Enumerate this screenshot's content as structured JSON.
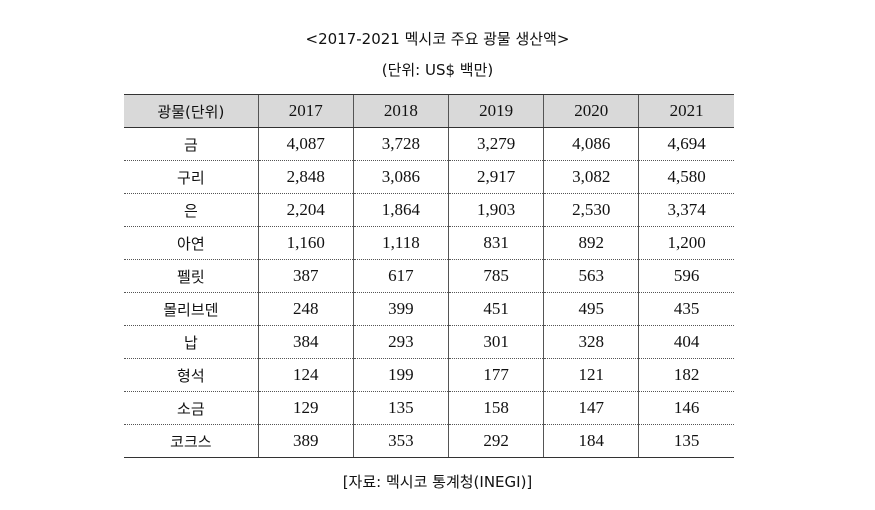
{
  "title": "<2017-2021 멕시코 주요 광물 생산액>",
  "unit": "(단위: US$ 백만)",
  "table": {
    "header_label": "광물(단위)",
    "years": [
      "2017",
      "2018",
      "2019",
      "2020",
      "2021"
    ],
    "rows": [
      {
        "mineral": "금",
        "values": [
          "4,087",
          "3,728",
          "3,279",
          "4,086",
          "4,694"
        ]
      },
      {
        "mineral": "구리",
        "values": [
          "2,848",
          "3,086",
          "2,917",
          "3,082",
          "4,580"
        ]
      },
      {
        "mineral": "은",
        "values": [
          "2,204",
          "1,864",
          "1,903",
          "2,530",
          "3,374"
        ]
      },
      {
        "mineral": "아연",
        "values": [
          "1,160",
          "1,118",
          "831",
          "892",
          "1,200"
        ]
      },
      {
        "mineral": "펠릿",
        "values": [
          "387",
          "617",
          "785",
          "563",
          "596"
        ]
      },
      {
        "mineral": "몰리브덴",
        "values": [
          "248",
          "399",
          "451",
          "495",
          "435"
        ]
      },
      {
        "mineral": "납",
        "values": [
          "384",
          "293",
          "301",
          "328",
          "404"
        ]
      },
      {
        "mineral": "형석",
        "values": [
          "124",
          "199",
          "177",
          "121",
          "182"
        ]
      },
      {
        "mineral": "소금",
        "values": [
          "129",
          "135",
          "158",
          "147",
          "146"
        ]
      },
      {
        "mineral": "코크스",
        "values": [
          "389",
          "353",
          "292",
          "184",
          "135"
        ]
      }
    ]
  },
  "source": "[자료: 멕시코 통계청(INEGI)]"
}
